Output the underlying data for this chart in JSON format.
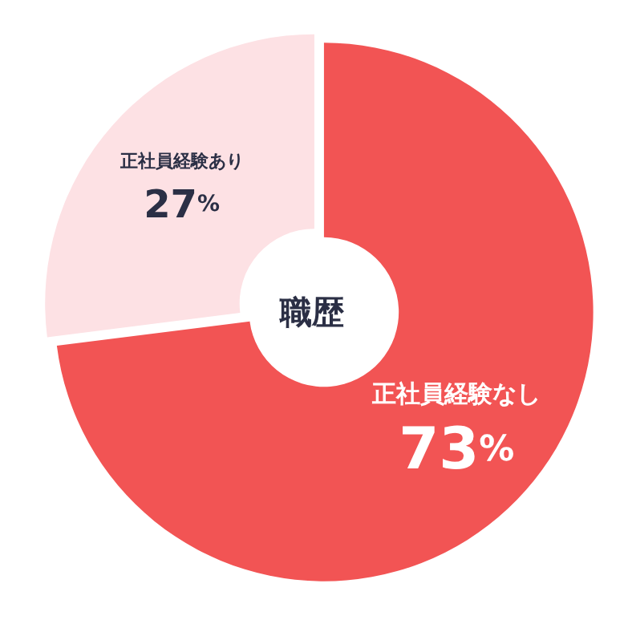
{
  "chart_data": {
    "type": "donut",
    "title": "職歴",
    "categories": [
      "正社員経験なし",
      "正社員経験あり"
    ],
    "values": [
      73,
      27
    ],
    "colors": [
      "#f25454",
      "#fde1e4"
    ],
    "value_labels": [
      "73%",
      "27%"
    ],
    "legend": false
  }
}
